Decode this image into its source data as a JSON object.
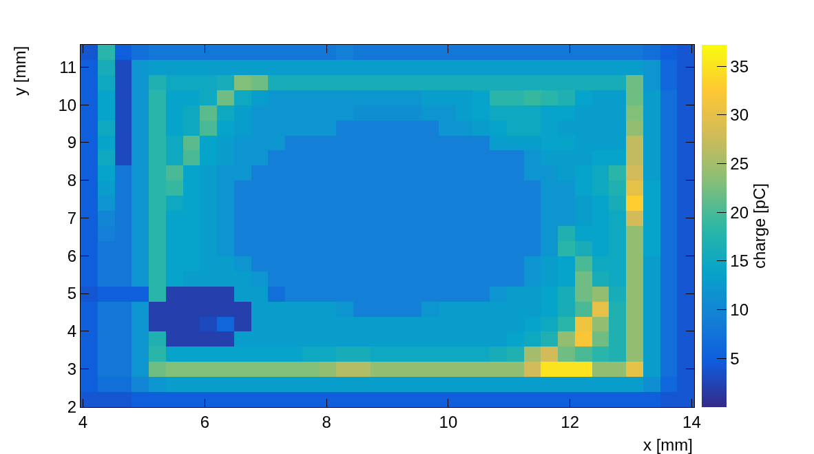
{
  "chart_data": {
    "type": "heatmap",
    "xlabel": "x [mm]",
    "ylabel": "y [mm]",
    "clabel": "charge [pC]",
    "xlim": [
      3.96,
      14.04
    ],
    "ylim": [
      1.99,
      11.59
    ],
    "xticks": [
      4,
      6,
      8,
      10,
      12,
      14
    ],
    "yticks": [
      2,
      3,
      4,
      5,
      6,
      7,
      8,
      9,
      10,
      11
    ],
    "clim": [
      0,
      37.2
    ],
    "cticks": [
      5,
      10,
      15,
      20,
      25,
      30,
      35
    ],
    "x": [
      4.1,
      4.38,
      4.66,
      4.94,
      5.22,
      5.5,
      5.78,
      6.06,
      6.34,
      6.62,
      6.9,
      7.18,
      7.46,
      7.74,
      8.02,
      8.3,
      8.58,
      8.86,
      9.14,
      9.42,
      9.7,
      9.98,
      10.26,
      10.54,
      10.82,
      11.1,
      11.38,
      11.66,
      11.94,
      12.22,
      12.5,
      12.78,
      13.06,
      13.34,
      13.62,
      13.9
    ],
    "y": [
      11.39,
      10.99,
      10.59,
      10.19,
      9.79,
      9.39,
      8.99,
      8.59,
      8.19,
      7.79,
      7.39,
      6.99,
      6.59,
      6.19,
      5.79,
      5.39,
      4.99,
      4.59,
      4.19,
      3.79,
      3.39,
      2.99,
      2.59,
      2.19
    ],
    "cells": [
      [
        4,
        18,
        5,
        7,
        8,
        8,
        8,
        8,
        8,
        8,
        8,
        8,
        8,
        8,
        8,
        9,
        8,
        8,
        8,
        8,
        8,
        8,
        8,
        8,
        8,
        8,
        8,
        8,
        8,
        8,
        8,
        8,
        8,
        7,
        5,
        4
      ],
      [
        5,
        16,
        3,
        12,
        13,
        13,
        13,
        13,
        13,
        13,
        13,
        13,
        13,
        13,
        13,
        13,
        13,
        13,
        13,
        13,
        13,
        13,
        13,
        13,
        13,
        13,
        13,
        13,
        13,
        13,
        13,
        13,
        13,
        12,
        6,
        4
      ],
      [
        5,
        15,
        3,
        12,
        17,
        15,
        15,
        15,
        16,
        23,
        22,
        16,
        16,
        16,
        16,
        16,
        16,
        16,
        16,
        16,
        16,
        16,
        16,
        16,
        16,
        16,
        16,
        16,
        16,
        16,
        16,
        16,
        22,
        12,
        6,
        4
      ],
      [
        5,
        14,
        3,
        12,
        18,
        14,
        14,
        15,
        22,
        15,
        13,
        12,
        12,
        12,
        12,
        12,
        12,
        12,
        12,
        12,
        13,
        13,
        13,
        14,
        18,
        18,
        19,
        18,
        17,
        14,
        13,
        13,
        22,
        13,
        7,
        4
      ],
      [
        5,
        14,
        3,
        12,
        18,
        14,
        15,
        21,
        15,
        13,
        12,
        12,
        12,
        12,
        12,
        12,
        11,
        11,
        11,
        11,
        12,
        12,
        13,
        14,
        15,
        15,
        15,
        14,
        14,
        13,
        13,
        13,
        23,
        13,
        7,
        4
      ],
      [
        5,
        15,
        3,
        12,
        18,
        14,
        15,
        20,
        14,
        13,
        12,
        12,
        12,
        12,
        12,
        9,
        9,
        9,
        9,
        9,
        9,
        12,
        12,
        13,
        14,
        15,
        15,
        14,
        13,
        13,
        13,
        13,
        24,
        13,
        7,
        4
      ],
      [
        5,
        14,
        3,
        12,
        18,
        15,
        21,
        14,
        13,
        12,
        12,
        12,
        9,
        9,
        9,
        9,
        9,
        9,
        9,
        9,
        9,
        9,
        9,
        9,
        13,
        13,
        13,
        14,
        14,
        13,
        13,
        13,
        27,
        13,
        7,
        4
      ],
      [
        5,
        15,
        3,
        12,
        18,
        15,
        20,
        14,
        13,
        12,
        12,
        9,
        9,
        9,
        9,
        9,
        9,
        9,
        9,
        9,
        9,
        9,
        9,
        9,
        9,
        9,
        12,
        13,
        13,
        13,
        14,
        14,
        27,
        13,
        7,
        4
      ],
      [
        5,
        14,
        8,
        12,
        18,
        20,
        14,
        13,
        12,
        12,
        9,
        9,
        9,
        9,
        9,
        9,
        9,
        9,
        9,
        9,
        9,
        9,
        9,
        9,
        9,
        9,
        12,
        12,
        13,
        14,
        15,
        18,
        28,
        13,
        7,
        4
      ],
      [
        5,
        13,
        8,
        12,
        18,
        19,
        14,
        13,
        12,
        9,
        9,
        9,
        9,
        9,
        9,
        9,
        9,
        9,
        9,
        9,
        9,
        9,
        9,
        9,
        9,
        9,
        9,
        12,
        12,
        14,
        15,
        17,
        30,
        14,
        7,
        4
      ],
      [
        5,
        12,
        8,
        12,
        18,
        15,
        14,
        13,
        12,
        9,
        9,
        9,
        9,
        9,
        9,
        9,
        9,
        9,
        9,
        9,
        9,
        9,
        9,
        9,
        9,
        9,
        9,
        12,
        12,
        13,
        14,
        16,
        33,
        14,
        7,
        4
      ],
      [
        5,
        10,
        8,
        12,
        18,
        14,
        14,
        13,
        12,
        9,
        9,
        9,
        9,
        9,
        9,
        9,
        9,
        9,
        9,
        9,
        9,
        9,
        9,
        9,
        9,
        9,
        9,
        12,
        12,
        13,
        14,
        15,
        28,
        14,
        7,
        4
      ],
      [
        5,
        9,
        8,
        12,
        18,
        14,
        14,
        13,
        12,
        9,
        9,
        9,
        9,
        9,
        9,
        9,
        9,
        9,
        9,
        9,
        9,
        9,
        9,
        9,
        9,
        9,
        9,
        12,
        17,
        14,
        14,
        15,
        24,
        14,
        7,
        4
      ],
      [
        5,
        8,
        8,
        12,
        18,
        14,
        14,
        13,
        12,
        9,
        9,
        9,
        9,
        9,
        9,
        9,
        9,
        9,
        9,
        9,
        9,
        9,
        9,
        9,
        9,
        9,
        9,
        12,
        18,
        16,
        14,
        15,
        24,
        14,
        7,
        4
      ],
      [
        5,
        8,
        8,
        12,
        18,
        14,
        14,
        13,
        13,
        12,
        9,
        9,
        9,
        9,
        9,
        9,
        9,
        9,
        9,
        9,
        9,
        9,
        9,
        9,
        9,
        9,
        12,
        13,
        14,
        20,
        15,
        15,
        24,
        13,
        7,
        4
      ],
      [
        5,
        8,
        8,
        12,
        18,
        14,
        13,
        13,
        13,
        13,
        12,
        9,
        9,
        9,
        9,
        9,
        9,
        9,
        9,
        9,
        9,
        9,
        9,
        9,
        9,
        9,
        12,
        13,
        14,
        22,
        16,
        15,
        24,
        13,
        7,
        4
      ],
      [
        4,
        5,
        5,
        5,
        18,
        2,
        2,
        2,
        2,
        13,
        13,
        7,
        9,
        9,
        9,
        9,
        9,
        9,
        9,
        9,
        9,
        9,
        9,
        9,
        12,
        13,
        13,
        14,
        16,
        22,
        24,
        16,
        24,
        13,
        7,
        4
      ],
      [
        5,
        8,
        8,
        12,
        2,
        2,
        2,
        2,
        2,
        2,
        13,
        13,
        13,
        13,
        13,
        12,
        9,
        9,
        9,
        9,
        12,
        13,
        13,
        13,
        13,
        13,
        13,
        14,
        16,
        20,
        30,
        17,
        24,
        13,
        7,
        4
      ],
      [
        5,
        8,
        8,
        12,
        2,
        2,
        2,
        3,
        6,
        2,
        13,
        13,
        13,
        13,
        13,
        13,
        13,
        13,
        13,
        13,
        13,
        13,
        13,
        13,
        13,
        13,
        14,
        15,
        18,
        31,
        24,
        17,
        24,
        13,
        7,
        4
      ],
      [
        5,
        8,
        8,
        12,
        17,
        2,
        2,
        2,
        2,
        13,
        13,
        13,
        13,
        13,
        13,
        13,
        13,
        13,
        13,
        13,
        13,
        13,
        13,
        13,
        13,
        14,
        15,
        17,
        24,
        32,
        22,
        17,
        24,
        13,
        7,
        4
      ],
      [
        5,
        8,
        8,
        12,
        18,
        14,
        14,
        14,
        14,
        14,
        14,
        14,
        14,
        15,
        15,
        16,
        16,
        15,
        15,
        15,
        15,
        15,
        15,
        15,
        16,
        17,
        25,
        28,
        22,
        20,
        18,
        17,
        24,
        13,
        7,
        4
      ],
      [
        5,
        8,
        8,
        12,
        22,
        23,
        23,
        23,
        23,
        23,
        23,
        23,
        23,
        23,
        24,
        26,
        26,
        24,
        24,
        24,
        24,
        24,
        24,
        24,
        24,
        24,
        28,
        35,
        35,
        35,
        24,
        24,
        30,
        13,
        7,
        4
      ],
      [
        5,
        7,
        7,
        10,
        12,
        13,
        13,
        13,
        13,
        13,
        13,
        13,
        13,
        13,
        13,
        13,
        13,
        13,
        13,
        13,
        13,
        13,
        13,
        13,
        13,
        13,
        13,
        13,
        13,
        13,
        13,
        13,
        13,
        11,
        6,
        4
      ],
      [
        4,
        4,
        4,
        5,
        5,
        5,
        5,
        5,
        5,
        5,
        5,
        5,
        5,
        5,
        5,
        5,
        5,
        5,
        5,
        5,
        5,
        5,
        5,
        5,
        5,
        5,
        5,
        5,
        5,
        5,
        5,
        5,
        5,
        5,
        4,
        4
      ]
    ]
  }
}
